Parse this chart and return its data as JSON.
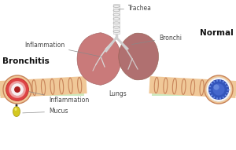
{
  "bg_color": "#ffffff",
  "labels": {
    "bronchitis": "Bronchitis",
    "normal": "Normal",
    "trachea": "Trachea",
    "bronchi": "Bronchi",
    "inflammation_left": "Inflammation",
    "inflammation_bottom": "Inflammation",
    "mucus": "Mucus",
    "lungs": "Lungs"
  },
  "lung_left_color": "#c97a7a",
  "lung_right_color": "#b07070",
  "trachea_color": "#ececec",
  "tube_outer_color": "#f0c898",
  "tube_ring_color": "#c8845a",
  "tube_inner_bronchitis": "#cc3333",
  "tube_inner_normal": "#3355bb",
  "mucus_color": "#d4c820",
  "green_highlight": "#c8e8b8",
  "ann_color": "#444444",
  "ann_fs": 5.5,
  "title_fs": 7.5
}
